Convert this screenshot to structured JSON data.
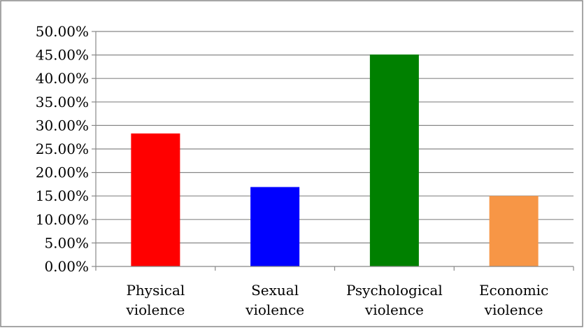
{
  "chart_data": {
    "type": "bar",
    "categories": [
      [
        "Physical",
        "violence"
      ],
      [
        "Sexual",
        "violence"
      ],
      [
        "Psychological",
        "violence"
      ],
      [
        "Economic",
        "violence"
      ]
    ],
    "values": [
      28.3,
      16.9,
      45.1,
      15.0
    ],
    "value_unit": "%",
    "bar_colors": [
      "#ff0000",
      "#0000ff",
      "#008000",
      "#f79646"
    ],
    "ylim": [
      0,
      50
    ],
    "y_ticks": [
      0,
      5,
      10,
      15,
      20,
      25,
      30,
      35,
      40,
      45,
      50
    ],
    "y_tick_labels": [
      "0.00%",
      "5.00%",
      "10.00%",
      "15.00%",
      "20.00%",
      "25.00%",
      "30.00%",
      "35.00%",
      "40.00%",
      "45.00%",
      "50.00%"
    ],
    "grid": true,
    "legend": "none",
    "title": "",
    "xlabel": "",
    "ylabel": ""
  },
  "colors": {
    "gridline": "#888888",
    "axis": "#888888",
    "frame": "#888888",
    "background": "#ffffff"
  }
}
